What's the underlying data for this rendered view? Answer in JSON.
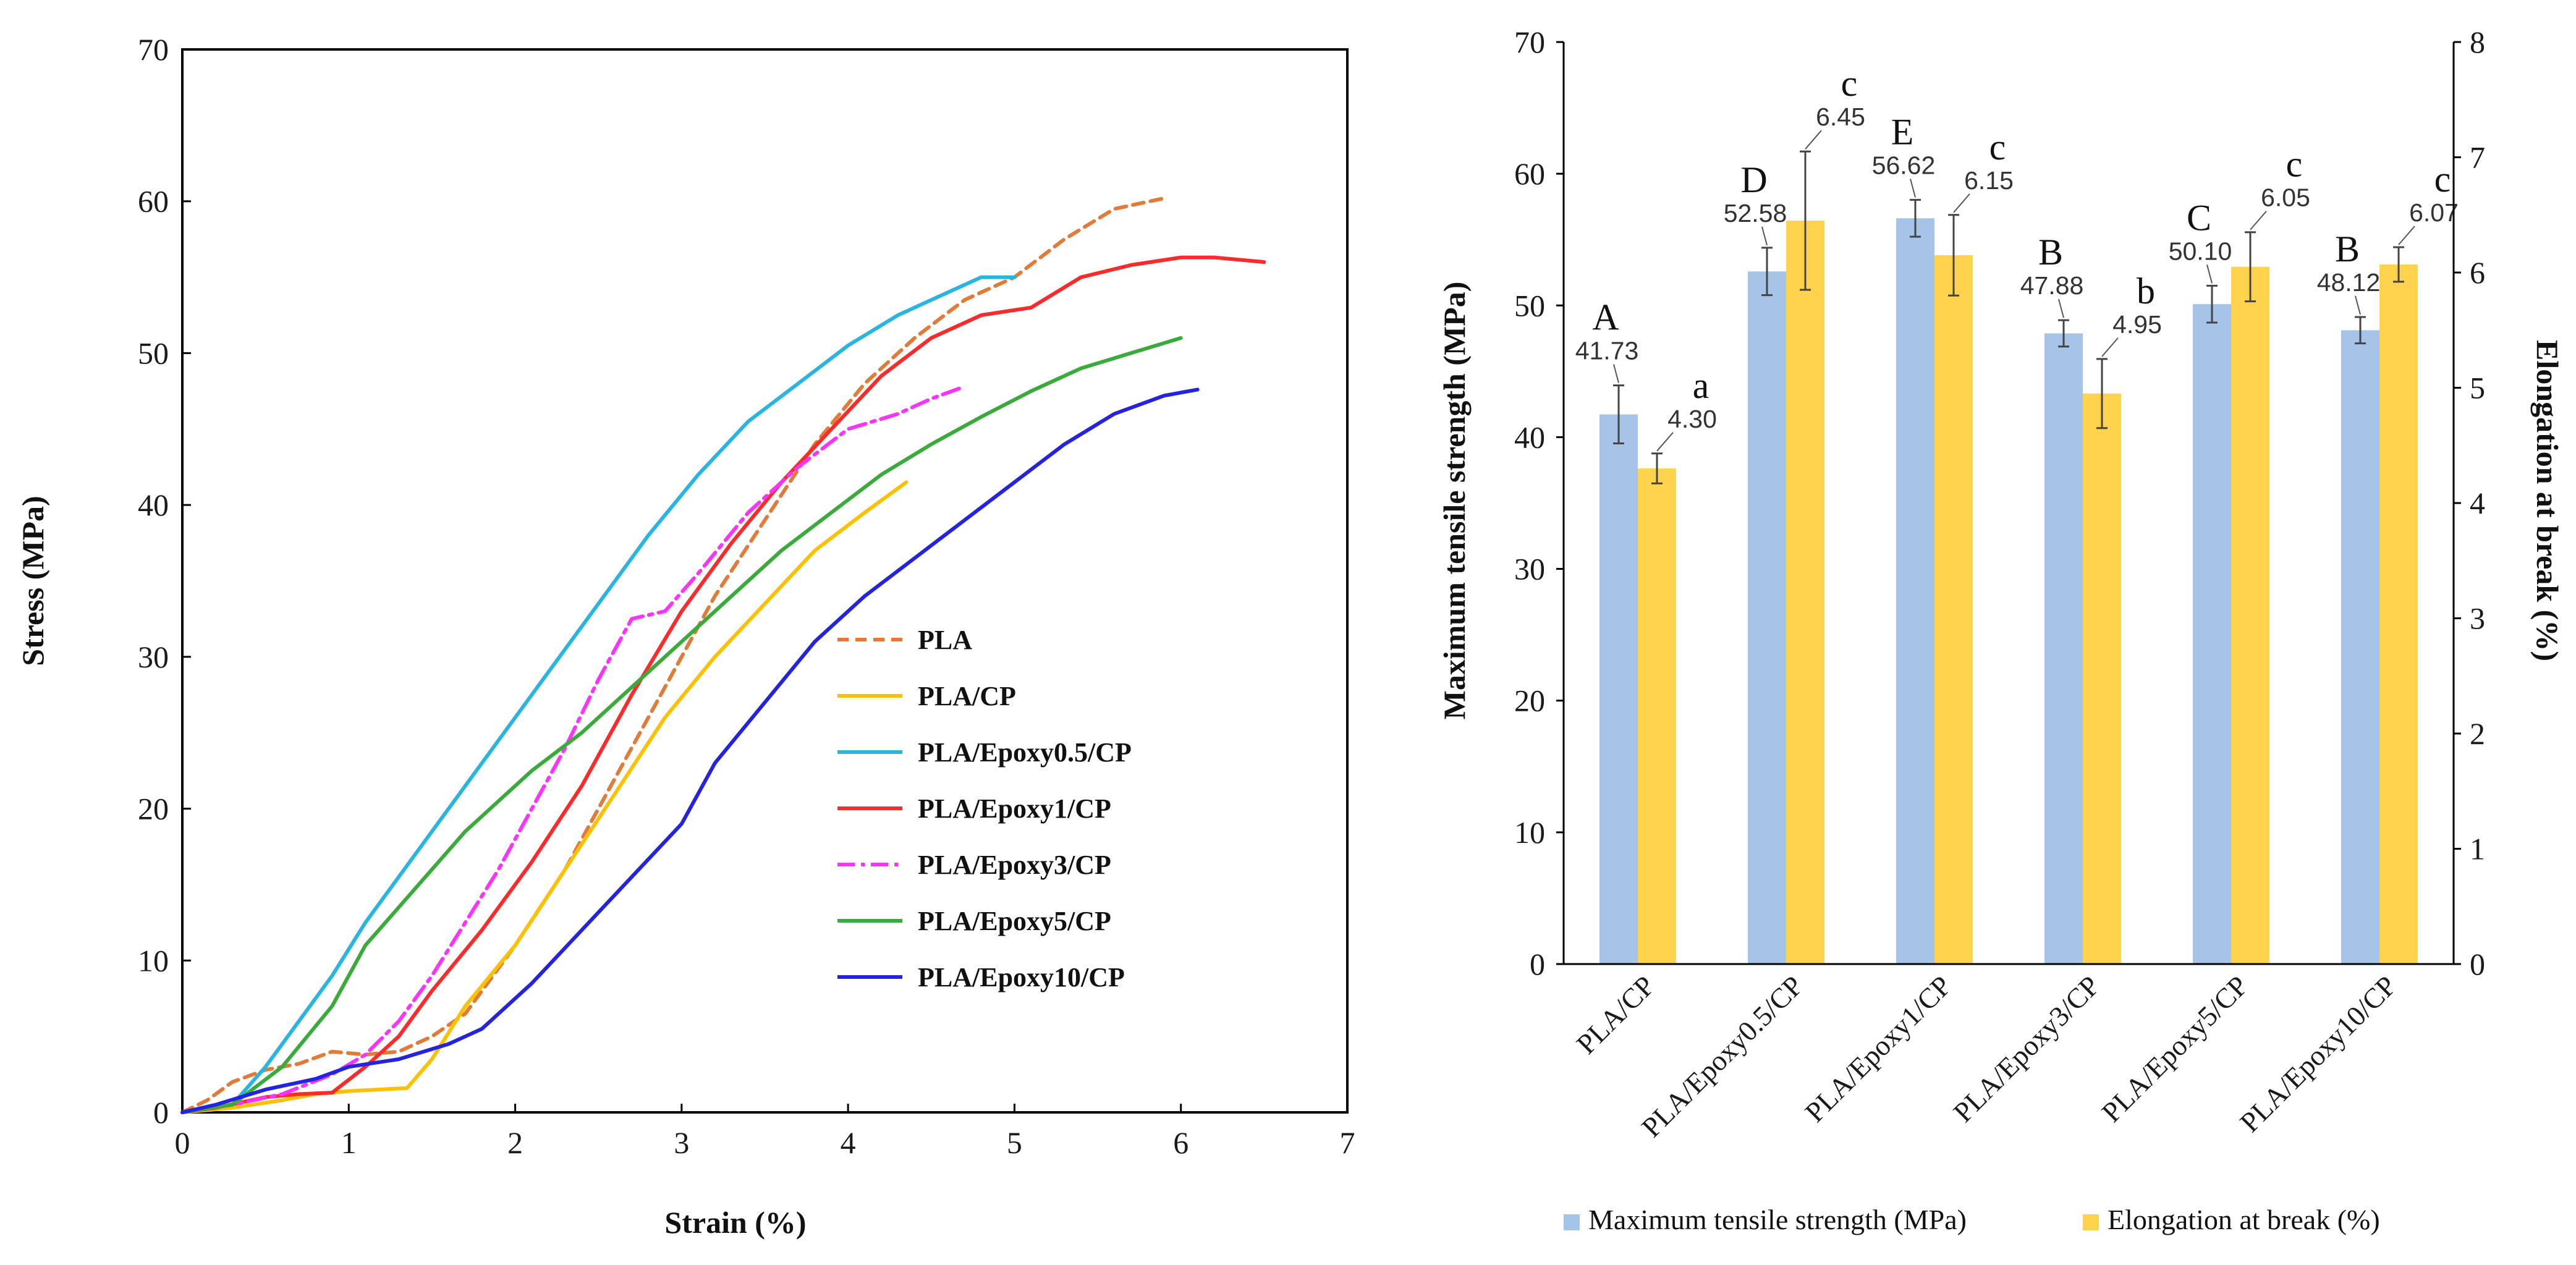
{
  "chart_data": [
    {
      "type": "line",
      "title": "",
      "xlabel": "Strain (%)",
      "ylabel": "Stress (MPa)",
      "xlim": [
        0,
        7
      ],
      "ylim": [
        0,
        70
      ],
      "xticks": [
        "0",
        "1",
        "2",
        "3",
        "4",
        "5",
        "6",
        "7"
      ],
      "yticks": [
        "0",
        "10",
        "20",
        "30",
        "40",
        "50",
        "60",
        "70"
      ],
      "legend_position": "center-right",
      "series": [
        {
          "name": "PLA",
          "color": "#e07b39",
          "dash": "dashed",
          "points": [
            [
              0,
              0
            ],
            [
              0.15,
              0.8
            ],
            [
              0.3,
              2
            ],
            [
              0.5,
              2.8
            ],
            [
              0.7,
              3.2
            ],
            [
              0.9,
              4
            ],
            [
              1.1,
              3.8
            ],
            [
              1.3,
              4
            ],
            [
              1.5,
              5
            ],
            [
              1.7,
              6.5
            ],
            [
              2,
              11
            ],
            [
              2.3,
              16
            ],
            [
              2.6,
              22
            ],
            [
              2.9,
              28
            ],
            [
              3.2,
              34
            ],
            [
              3.5,
              39
            ],
            [
              3.8,
              44
            ],
            [
              4.1,
              48
            ],
            [
              4.4,
              51
            ],
            [
              4.7,
              53.5
            ],
            [
              5,
              55
            ],
            [
              5.3,
              57.5
            ],
            [
              5.6,
              59.5
            ],
            [
              5.9,
              60.2
            ]
          ]
        },
        {
          "name": "PLA/CP",
          "color": "#ffc000",
          "dash": "solid",
          "points": [
            [
              0,
              0
            ],
            [
              0.3,
              0.3
            ],
            [
              0.6,
              0.8
            ],
            [
              0.8,
              1.2
            ],
            [
              1,
              1.4
            ],
            [
              1.35,
              1.6
            ],
            [
              1.5,
              3.5
            ],
            [
              1.7,
              7
            ],
            [
              2,
              11
            ],
            [
              2.3,
              16
            ],
            [
              2.6,
              21
            ],
            [
              2.9,
              26
            ],
            [
              3.2,
              30
            ],
            [
              3.5,
              33.5
            ],
            [
              3.8,
              37
            ],
            [
              4.1,
              39.5
            ],
            [
              4.35,
              41.5
            ]
          ]
        },
        {
          "name": "PLA/Epoxy0.5/CP",
          "color": "#29b4e2",
          "dash": "solid",
          "points": [
            [
              0,
              0
            ],
            [
              0.3,
              0.5
            ],
            [
              0.5,
              3
            ],
            [
              0.7,
              6
            ],
            [
              0.9,
              9
            ],
            [
              1.1,
              12.5
            ],
            [
              1.3,
              15.5
            ],
            [
              1.5,
              18.5
            ],
            [
              1.7,
              21.5
            ],
            [
              1.9,
              24.5
            ],
            [
              2.2,
              29
            ],
            [
              2.5,
              33.5
            ],
            [
              2.8,
              38
            ],
            [
              3.1,
              42
            ],
            [
              3.4,
              45.5
            ],
            [
              3.7,
              48
            ],
            [
              4,
              50.5
            ],
            [
              4.3,
              52.5
            ],
            [
              4.6,
              54
            ],
            [
              4.8,
              55
            ],
            [
              5,
              55
            ]
          ]
        },
        {
          "name": "PLA/Epoxy1/CP",
          "color": "#ff2a2a",
          "dash": "solid",
          "points": [
            [
              0,
              0
            ],
            [
              0.2,
              0.3
            ],
            [
              0.5,
              1
            ],
            [
              0.7,
              1.2
            ],
            [
              0.9,
              1.3
            ],
            [
              1.1,
              3
            ],
            [
              1.3,
              5
            ],
            [
              1.5,
              8
            ],
            [
              1.8,
              12
            ],
            [
              2.1,
              16.5
            ],
            [
              2.4,
              21.5
            ],
            [
              2.7,
              27.5
            ],
            [
              3,
              33
            ],
            [
              3.3,
              37.5
            ],
            [
              3.6,
              41.5
            ],
            [
              3.9,
              45
            ],
            [
              4.2,
              48.5
            ],
            [
              4.5,
              51
            ],
            [
              4.8,
              52.5
            ],
            [
              5.1,
              53
            ],
            [
              5.4,
              55
            ],
            [
              5.7,
              55.8
            ],
            [
              6,
              56.3
            ],
            [
              6.2,
              56.3
            ],
            [
              6.5,
              56
            ]
          ]
        },
        {
          "name": "PLA/Epoxy3/CP",
          "color": "#ff33ff",
          "dash": "dashdot",
          "points": [
            [
              0,
              0
            ],
            [
              0.3,
              0.5
            ],
            [
              0.6,
              1.2
            ],
            [
              0.9,
              2.5
            ],
            [
              1.1,
              3.8
            ],
            [
              1.3,
              6
            ],
            [
              1.5,
              9
            ],
            [
              1.7,
              12.5
            ],
            [
              1.9,
              16
            ],
            [
              2.1,
              20
            ],
            [
              2.3,
              24
            ],
            [
              2.5,
              28.5
            ],
            [
              2.7,
              32.5
            ],
            [
              2.9,
              33
            ],
            [
              3.1,
              35.5
            ],
            [
              3.4,
              39.5
            ],
            [
              3.7,
              42.5
            ],
            [
              4,
              45
            ],
            [
              4.3,
              46
            ],
            [
              4.5,
              47
            ],
            [
              4.7,
              47.8
            ]
          ]
        },
        {
          "name": "PLA/Epoxy5/CP",
          "color": "#3aaa3a",
          "dash": "solid",
          "points": [
            [
              0,
              0
            ],
            [
              0.3,
              0.5
            ],
            [
              0.6,
              3
            ],
            [
              0.9,
              7
            ],
            [
              1.1,
              11
            ],
            [
              1.3,
              13.5
            ],
            [
              1.5,
              16
            ],
            [
              1.7,
              18.5
            ],
            [
              1.9,
              20.5
            ],
            [
              2.1,
              22.5
            ],
            [
              2.4,
              25
            ],
            [
              2.7,
              28
            ],
            [
              3,
              31
            ],
            [
              3.3,
              34
            ],
            [
              3.6,
              37
            ],
            [
              3.9,
              39.5
            ],
            [
              4.2,
              42
            ],
            [
              4.5,
              44
            ],
            [
              4.8,
              45.8
            ],
            [
              5.1,
              47.5
            ],
            [
              5.4,
              49
            ],
            [
              5.7,
              50
            ],
            [
              6,
              51
            ]
          ]
        },
        {
          "name": "PLA/Epoxy10/CP",
          "color": "#2323e0",
          "dash": "solid",
          "points": [
            [
              0,
              0
            ],
            [
              0.2,
              0.5
            ],
            [
              0.5,
              1.5
            ],
            [
              0.8,
              2.2
            ],
            [
              1,
              3
            ],
            [
              1.3,
              3.5
            ],
            [
              1.6,
              4.5
            ],
            [
              1.8,
              5.5
            ],
            [
              2.1,
              8.5
            ],
            [
              2.4,
              12
            ],
            [
              2.7,
              15.5
            ],
            [
              3,
              19
            ],
            [
              3.2,
              23
            ],
            [
              3.5,
              27
            ],
            [
              3.8,
              31
            ],
            [
              4.1,
              34
            ],
            [
              4.4,
              36.5
            ],
            [
              4.7,
              39
            ],
            [
              5,
              41.5
            ],
            [
              5.3,
              44
            ],
            [
              5.6,
              46
            ],
            [
              5.9,
              47.2
            ],
            [
              6.1,
              47.6
            ]
          ]
        }
      ]
    },
    {
      "type": "bar",
      "title": "",
      "xlabel": "",
      "ylabel": "Maximum tensile strength (MPa)",
      "y2label": "Elongation at break (%)",
      "ylim": [
        0,
        70
      ],
      "y2lim": [
        0,
        8
      ],
      "yticks": [
        "0",
        "10",
        "20",
        "30",
        "40",
        "50",
        "60",
        "70"
      ],
      "y2ticks": [
        "0",
        "1",
        "2",
        "3",
        "4",
        "5",
        "6",
        "7",
        "8"
      ],
      "legend_position": "bottom",
      "categories": [
        "PLA/CP",
        "PLA/Epoxy0.5/CP",
        "PLA/Epoxy1/CP",
        "PLA/Epoxy3/CP",
        "PLA/Epoxy5/CP",
        "PLA/Epoxy10/CP"
      ],
      "series": [
        {
          "name": "Maximum tensile strength (MPa)",
          "axis": "left",
          "color": "#a6c3e8",
          "values": [
            41.73,
            52.58,
            56.62,
            47.88,
            50.1,
            48.12
          ],
          "labels": [
            "41.73",
            "52.58",
            "56.62",
            "47.88",
            "50.10",
            "48.12"
          ],
          "errors": [
            2.2,
            1.8,
            1.4,
            1.0,
            1.4,
            1.0
          ],
          "significance": [
            "A",
            "D",
            "E",
            "B",
            "C",
            "B"
          ]
        },
        {
          "name": "Elongation at break (%)",
          "axis": "right",
          "color": "#ffd34d",
          "values": [
            4.3,
            6.45,
            6.15,
            4.95,
            6.05,
            6.07
          ],
          "labels": [
            "4.30",
            "6.45",
            "6.15",
            "4.95",
            "6.05",
            "6.07"
          ],
          "errors": [
            0.13,
            0.6,
            0.35,
            0.3,
            0.3,
            0.15
          ],
          "significance": [
            "a",
            "c",
            "c",
            "b",
            "c",
            "c"
          ]
        }
      ]
    }
  ]
}
